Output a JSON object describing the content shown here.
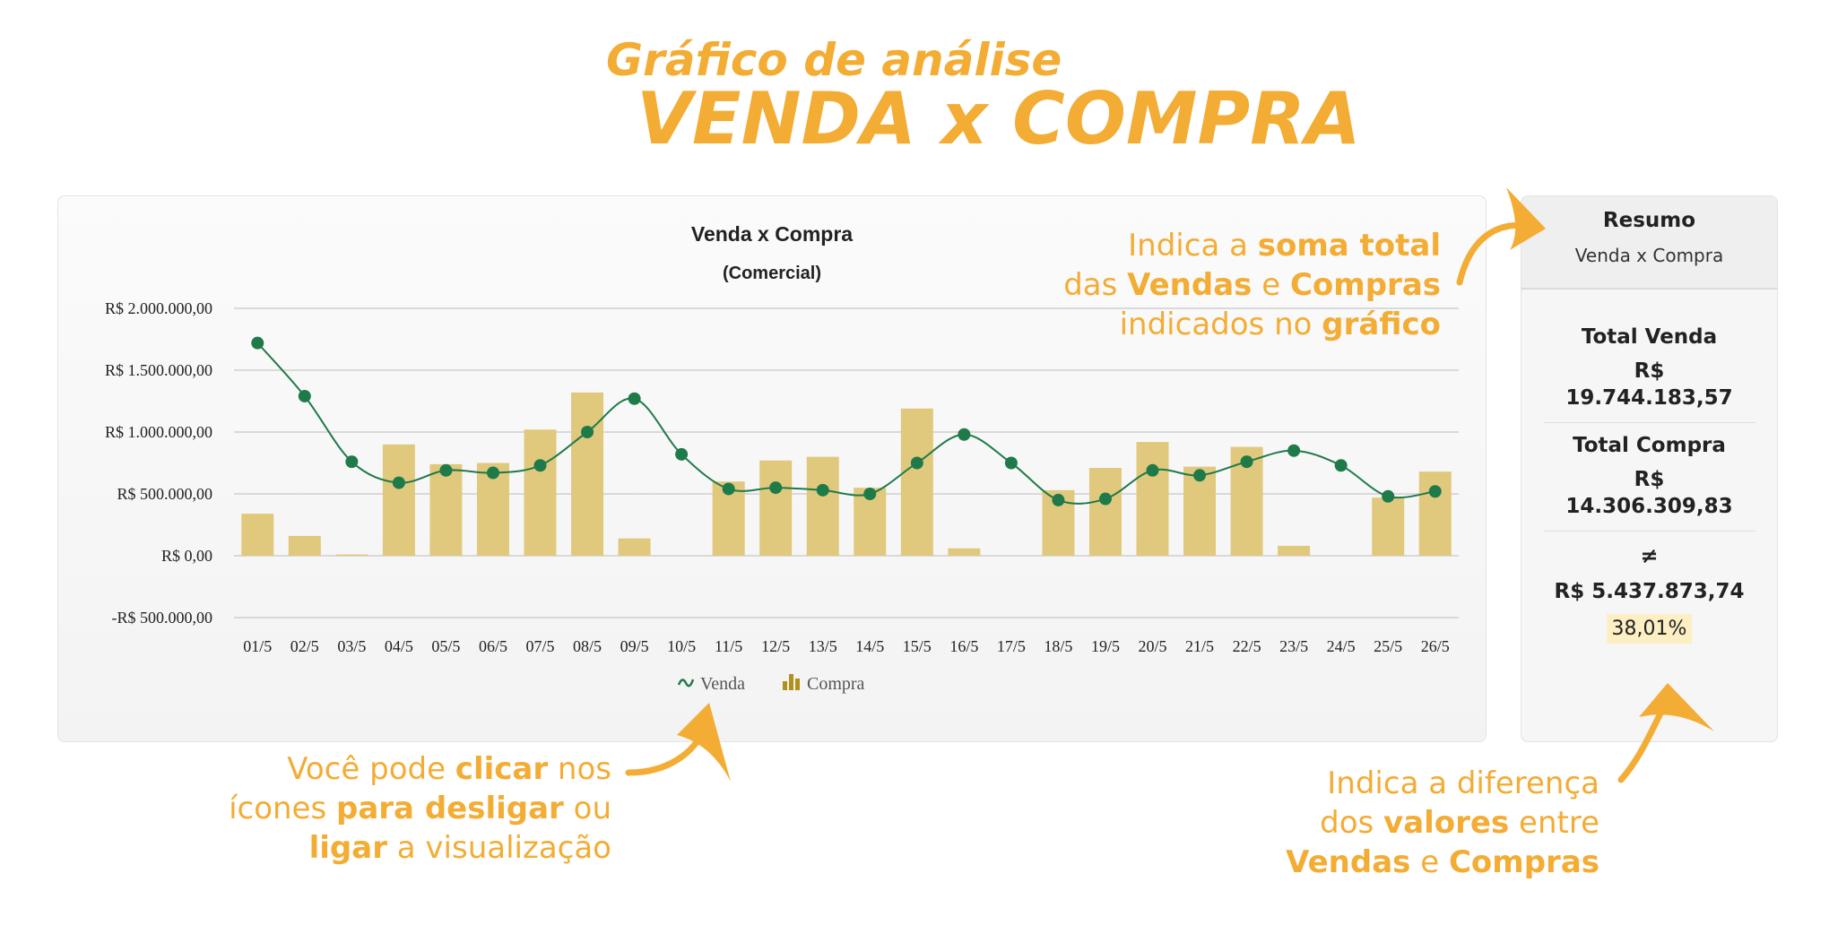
{
  "header": {
    "subtitle": "Gráfico de análise",
    "title": "VENDA x COMPRA"
  },
  "chart_data": {
    "type": "bar",
    "title": "Venda x Compra",
    "subtitle": "(Comercial)",
    "categories": [
      "01/5",
      "02/5",
      "03/5",
      "04/5",
      "05/5",
      "06/5",
      "07/5",
      "08/5",
      "09/5",
      "10/5",
      "11/5",
      "12/5",
      "13/5",
      "14/5",
      "15/5",
      "16/5",
      "17/5",
      "18/5",
      "19/5",
      "20/5",
      "21/5",
      "22/5",
      "23/5",
      "24/5",
      "25/5",
      "26/5"
    ],
    "series": [
      {
        "name": "Venda",
        "type": "line",
        "color": "#1f7a4a",
        "values": [
          1720000,
          1290000,
          760000,
          590000,
          690000,
          670000,
          730000,
          1000000,
          1270000,
          820000,
          540000,
          550000,
          530000,
          500000,
          750000,
          980000,
          750000,
          450000,
          460000,
          690000,
          650000,
          760000,
          850000,
          730000,
          480000,
          520000
        ]
      },
      {
        "name": "Compra",
        "type": "bar",
        "color": "#e0c97c",
        "values": [
          340000,
          160000,
          10000,
          900000,
          740000,
          750000,
          1020000,
          1320000,
          140000,
          0,
          600000,
          770000,
          800000,
          550000,
          1190000,
          60000,
          0,
          530000,
          710000,
          920000,
          720000,
          880000,
          80000,
          0,
          470000,
          680000
        ]
      }
    ],
    "yticks": [
      "R$ 2.000.000,00",
      "R$ 1.500.000,00",
      "R$ 1.000.000,00",
      "R$ 500.000,00",
      "R$ 0,00",
      "-R$ 500.000,00"
    ],
    "ylim": [
      -500000,
      2000000
    ],
    "grid": true,
    "legend": "bottom-center"
  },
  "summary": {
    "title": "Resumo",
    "subtitle": "Venda x Compra",
    "total_venda_label": "Total Venda",
    "total_venda_currency": "R$",
    "total_venda_value": "19.744.183,57",
    "total_compra_label": "Total Compra",
    "total_compra_currency": "R$",
    "total_compra_value": "14.306.309,83",
    "diff_symbol": "≠",
    "diff_value": "R$ 5.437.873,74",
    "diff_percent": "38,01%"
  },
  "notes": {
    "top": {
      "l1a": "Indica a ",
      "l1b": "soma total",
      "l2a": "das ",
      "l2b": "Vendas",
      "l2c": " e ",
      "l2d": "Compras",
      "l3a": "indicados no ",
      "l3b": "gráfico"
    },
    "legend": {
      "l1a": "Você pode ",
      "l1b": "clicar",
      "l1c": " nos",
      "l2a": "ícones ",
      "l2b": "para desligar",
      "l2c": " ou",
      "l3a": "ligar",
      "l3b": " a visualização"
    },
    "diff": {
      "l1": "Indica a diferença",
      "l2a": "dos ",
      "l2b": "valores",
      "l2c": " entre",
      "l3a": "Vendas",
      "l3b": " e ",
      "l3c": "Compras"
    }
  },
  "colors": {
    "accent": "#f3ac34",
    "venda": "#1f7a4a",
    "compra": "#e0c97c"
  }
}
